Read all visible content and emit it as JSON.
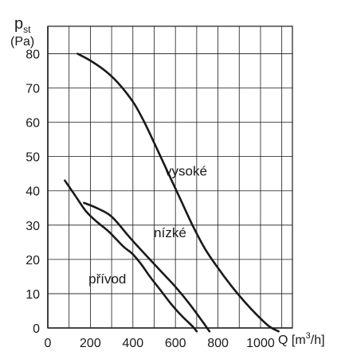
{
  "chart_data": {
    "type": "line",
    "y_title_main": "p",
    "y_title_sub": "st",
    "y_unit": "(Pa)",
    "x_title_prefix": "Q [m",
    "x_title_sup": "3",
    "x_title_suffix": "/h]",
    "xlim": [
      0,
      1150
    ],
    "ylim": [
      0,
      88
    ],
    "x_ticks": [
      0,
      200,
      400,
      600,
      800,
      1000
    ],
    "x_tick_labels": [
      "0",
      "200",
      "400",
      "600",
      "800",
      "1000"
    ],
    "y_ticks": [
      0,
      10,
      20,
      30,
      40,
      50,
      60,
      70,
      80
    ],
    "y_tick_labels": [
      "0",
      "10",
      "20",
      "30",
      "40",
      "50",
      "60",
      "70",
      "80"
    ],
    "grid": true,
    "series": [
      {
        "name": "vysoké",
        "x": [
          140,
          200,
          270,
          330,
          400,
          450,
          500,
          560,
          620,
          680,
          740,
          800,
          860,
          920,
          980,
          1040,
          1085
        ],
        "y": [
          80,
          78,
          75,
          71.5,
          66,
          60.5,
          54,
          46,
          38,
          30,
          23,
          17.5,
          12.5,
          8,
          4,
          0.5,
          -1
        ]
      },
      {
        "name": "nízké",
        "x": [
          170,
          230,
          290,
          330,
          370,
          420,
          480,
          540,
          600,
          660,
          720,
          760
        ],
        "y": [
          36.5,
          35,
          33,
          30.5,
          27.5,
          24,
          20,
          16,
          12,
          7.5,
          2.5,
          -1
        ]
      },
      {
        "name": "přívod",
        "x": [
          80,
          130,
          180,
          230,
          280,
          320,
          360,
          400,
          440,
          480,
          530,
          580,
          630,
          680,
          700
        ],
        "y": [
          43,
          38.5,
          34,
          31,
          28.5,
          26,
          23.5,
          21.5,
          18.5,
          15,
          11,
          7,
          3.5,
          0.5,
          -1
        ]
      }
    ],
    "labels": [
      {
        "text": "vysoké",
        "x": 650,
        "y": 44.5
      },
      {
        "text": "nízké",
        "x": 575,
        "y": 26.5
      },
      {
        "text": "přívod",
        "x": 280,
        "y": 13
      }
    ]
  }
}
